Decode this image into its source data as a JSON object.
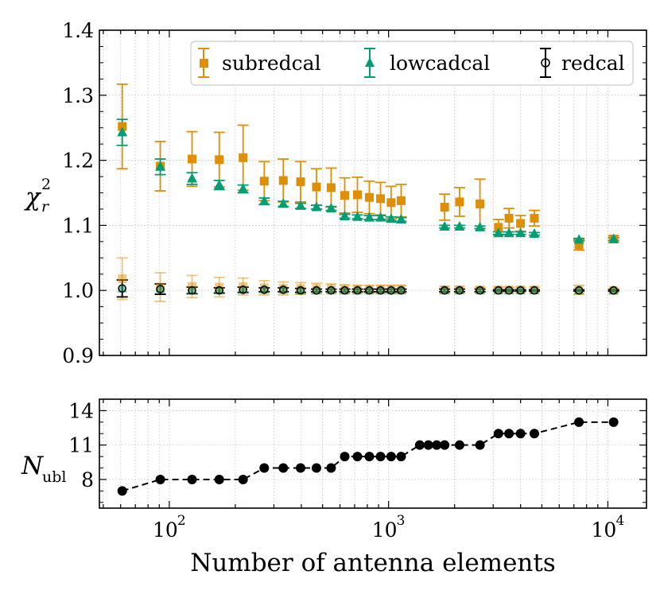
{
  "colors": {
    "subredcal": "#DE8F05",
    "lowcadcal": "#029E73",
    "redcal": "#000000",
    "grid": "#c8c8c8",
    "legend_border": "#cccccc"
  },
  "chart_data": [
    {
      "type": "scatter",
      "title": "",
      "xlabel": "Number of antenna elements",
      "ylabel_base": "χ",
      "ylabel_sup": "2",
      "ylabel_sub": "r",
      "xscale": "log",
      "xlim": [
        48,
        15000
      ],
      "ylim": [
        0.9,
        1.4
      ],
      "yticks": [
        "0.9",
        "1.0",
        "1.1",
        "1.2",
        "1.3",
        "1.4"
      ],
      "yticks_values": [
        0.9,
        1.0,
        1.1,
        1.2,
        1.3,
        1.4
      ],
      "grid": true,
      "legend_position": "top-right",
      "x": [
        61,
        91,
        127,
        169,
        217,
        271,
        331,
        397,
        469,
        547,
        631,
        721,
        817,
        919,
        1027,
        1141,
        1801,
        2107,
        2611,
        3169,
        3541,
        3997,
        4621,
        7381,
        10621
      ],
      "series": [
        {
          "name": "subredcal",
          "marker": "square",
          "values": [
            1.252,
            1.191,
            1.202,
            1.201,
            1.204,
            1.168,
            1.169,
            1.167,
            1.159,
            1.158,
            1.146,
            1.147,
            1.143,
            1.141,
            1.135,
            1.138,
            1.128,
            1.136,
            1.133,
            1.097,
            1.111,
            1.103,
            1.111,
            1.07,
            1.079
          ],
          "errors": [
            0.065,
            0.038,
            0.042,
            0.042,
            0.05,
            0.03,
            0.033,
            0.031,
            0.028,
            0.03,
            0.027,
            0.027,
            0.025,
            0.025,
            0.025,
            0.025,
            0.02,
            0.022,
            0.038,
            0.012,
            0.015,
            0.012,
            0.012,
            0.008,
            0.005
          ]
        },
        {
          "name": "lowcadcal",
          "marker": "triangle",
          "values": [
            1.243,
            1.19,
            1.172,
            1.162,
            1.156,
            1.137,
            1.133,
            1.13,
            1.128,
            1.126,
            1.114,
            1.113,
            1.112,
            1.112,
            1.11,
            1.109,
            1.098,
            1.098,
            1.097,
            1.088,
            1.088,
            1.088,
            1.087,
            1.078,
            1.079
          ],
          "errors": [
            0.02,
            0.012,
            0.009,
            0.007,
            0.006,
            0.005,
            0.004,
            0.004,
            0.003,
            0.003,
            0.003,
            0.003,
            0.003,
            0.003,
            0.003,
            0.003,
            0.002,
            0.002,
            0.002,
            0.002,
            0.002,
            0.002,
            0.002,
            0.002,
            0.002
          ]
        },
        {
          "name": "redcal",
          "marker": "circle",
          "values": [
            1.003,
            1.002,
            1.0,
            1.0,
            1.001,
            1.001,
            1.001,
            1.0,
            1.0,
            1.0,
            1.0,
            1.0,
            1.0,
            1.0,
            1.0,
            1.0,
            1.0,
            1.0,
            1.0,
            1.0,
            1.0,
            1.0,
            1.0,
            1.0,
            1.0
          ],
          "errors": [
            0.013,
            0.008,
            0.005,
            0.004,
            0.004,
            0.003,
            0.003,
            0.003,
            0.002,
            0.002,
            0.002,
            0.002,
            0.002,
            0.002,
            0.002,
            0.002,
            0.002,
            0.002,
            0.002,
            0.001,
            0.001,
            0.001,
            0.001,
            0.001,
            0.001
          ]
        },
        {
          "name": "subredcal (faded)",
          "marker": "square",
          "faded": true,
          "values": [
            1.018,
            1.005,
            1.006,
            1.005,
            1.006,
            1.004,
            1.003,
            1.003,
            1.003,
            1.003,
            1.002,
            1.002,
            1.002,
            1.002,
            1.002,
            1.002,
            1.001,
            1.001,
            1.001,
            1.001,
            1.001,
            1.001,
            1.001,
            1.001,
            1.0
          ],
          "errors": [
            0.032,
            0.022,
            0.017,
            0.015,
            0.013,
            0.011,
            0.01,
            0.009,
            0.008,
            0.007,
            0.007,
            0.006,
            0.006,
            0.006,
            0.006,
            0.006,
            0.005,
            0.005,
            0.004,
            0.004,
            0.004,
            0.004,
            0.004,
            0.007,
            0.003
          ]
        },
        {
          "name": "lowcadcal (faded)",
          "marker": "triangle",
          "faded": true,
          "values": [
            1.003,
            1.002,
            1.0,
            1.0,
            1.001,
            1.001,
            1.001,
            1.0,
            1.0,
            1.0,
            1.0,
            1.0,
            1.0,
            1.0,
            1.0,
            1.0,
            1.0,
            1.0,
            1.0,
            1.0,
            1.0,
            1.0,
            1.0,
            1.0,
            1.0
          ],
          "errors": [
            0.013,
            0.008,
            0.005,
            0.004,
            0.004,
            0.003,
            0.003,
            0.003,
            0.002,
            0.002,
            0.002,
            0.002,
            0.002,
            0.002,
            0.002,
            0.002,
            0.002,
            0.002,
            0.002,
            0.001,
            0.001,
            0.001,
            0.001,
            0.001,
            0.001
          ]
        }
      ],
      "legend": [
        "subredcal",
        "lowcadcal",
        "redcal"
      ]
    },
    {
      "type": "line",
      "title": "",
      "xlabel": "Number of antenna elements",
      "ylabel_base": "N",
      "ylabel_sub": "ubl",
      "xscale": "log",
      "xlim": [
        48,
        15000
      ],
      "ylim": [
        5.5,
        15
      ],
      "yticks": [
        "8",
        "11",
        "14"
      ],
      "yticks_values": [
        8,
        11,
        14
      ],
      "xticks": [
        "10",
        "10",
        "10"
      ],
      "xticks_exp": [
        "2",
        "3",
        "4"
      ],
      "xticks_values": [
        100,
        1000,
        10000
      ],
      "grid": true,
      "line_style": "dashed",
      "marker": "circle",
      "x": [
        61,
        91,
        127,
        169,
        217,
        271,
        331,
        397,
        469,
        547,
        631,
        721,
        817,
        919,
        1027,
        1141,
        1387,
        1519,
        1657,
        1801,
        2107,
        2611,
        3169,
        3541,
        3997,
        4621,
        7381,
        10621
      ],
      "values": [
        7,
        8,
        8,
        8,
        8,
        9,
        9,
        9,
        9,
        9,
        10,
        10,
        10,
        10,
        10,
        10,
        11,
        11,
        11,
        11,
        11,
        11,
        12,
        12,
        12,
        12,
        13,
        13
      ]
    }
  ]
}
